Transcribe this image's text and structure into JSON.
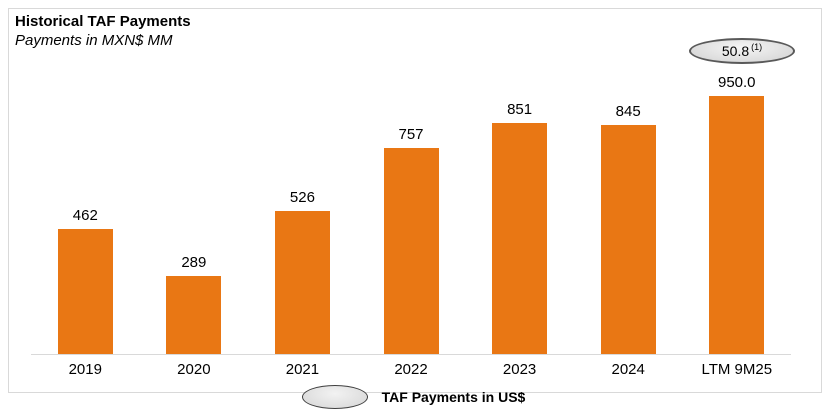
{
  "header": {
    "title": "Historical TAF Payments",
    "subtitle": "Payments in MXN$ MM"
  },
  "chart_data": {
    "type": "bar",
    "title": "Historical TAF Payments",
    "subtitle": "Payments in MXN$ MM",
    "categories": [
      "2019",
      "2020",
      "2021",
      "2022",
      "2023",
      "2024",
      "LTM 9M25"
    ],
    "values": [
      462,
      289,
      526,
      757,
      851,
      845,
      950
    ],
    "value_labels": [
      "462",
      "289",
      "526",
      "757",
      "851",
      "845",
      "950.0"
    ],
    "ylim": [
      0,
      950
    ],
    "grid": false,
    "bar_color": "#E97714",
    "axis_line_color": "#d9d9d9",
    "annotation": {
      "value": "50.8",
      "superscript": "(1)",
      "target_category": "LTM 9M25"
    }
  },
  "legend": {
    "label": "TAF Payments in US$",
    "marker": "gray-ellipse"
  },
  "colors": {
    "bar": "#E97714",
    "card_border": "#d9d9d9",
    "ellipse_border": "#595959",
    "text": "#000000"
  }
}
